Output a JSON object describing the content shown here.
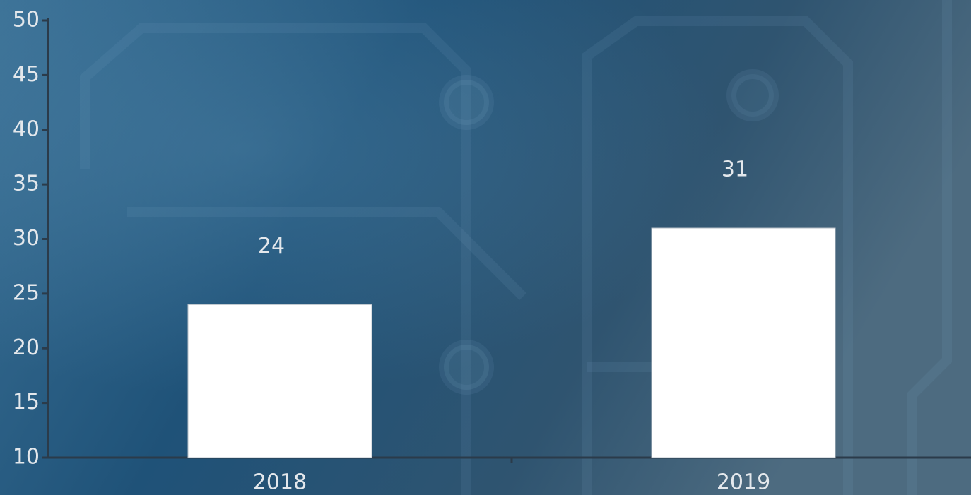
{
  "chart_data": {
    "type": "bar",
    "categories": [
      "2018",
      "2019"
    ],
    "values": [
      24,
      31
    ],
    "color": "#ffffff",
    "ylim": [
      10,
      50
    ],
    "yticks": [
      10,
      15,
      20,
      25,
      30,
      35,
      40,
      45,
      50
    ],
    "grid": false
  }
}
